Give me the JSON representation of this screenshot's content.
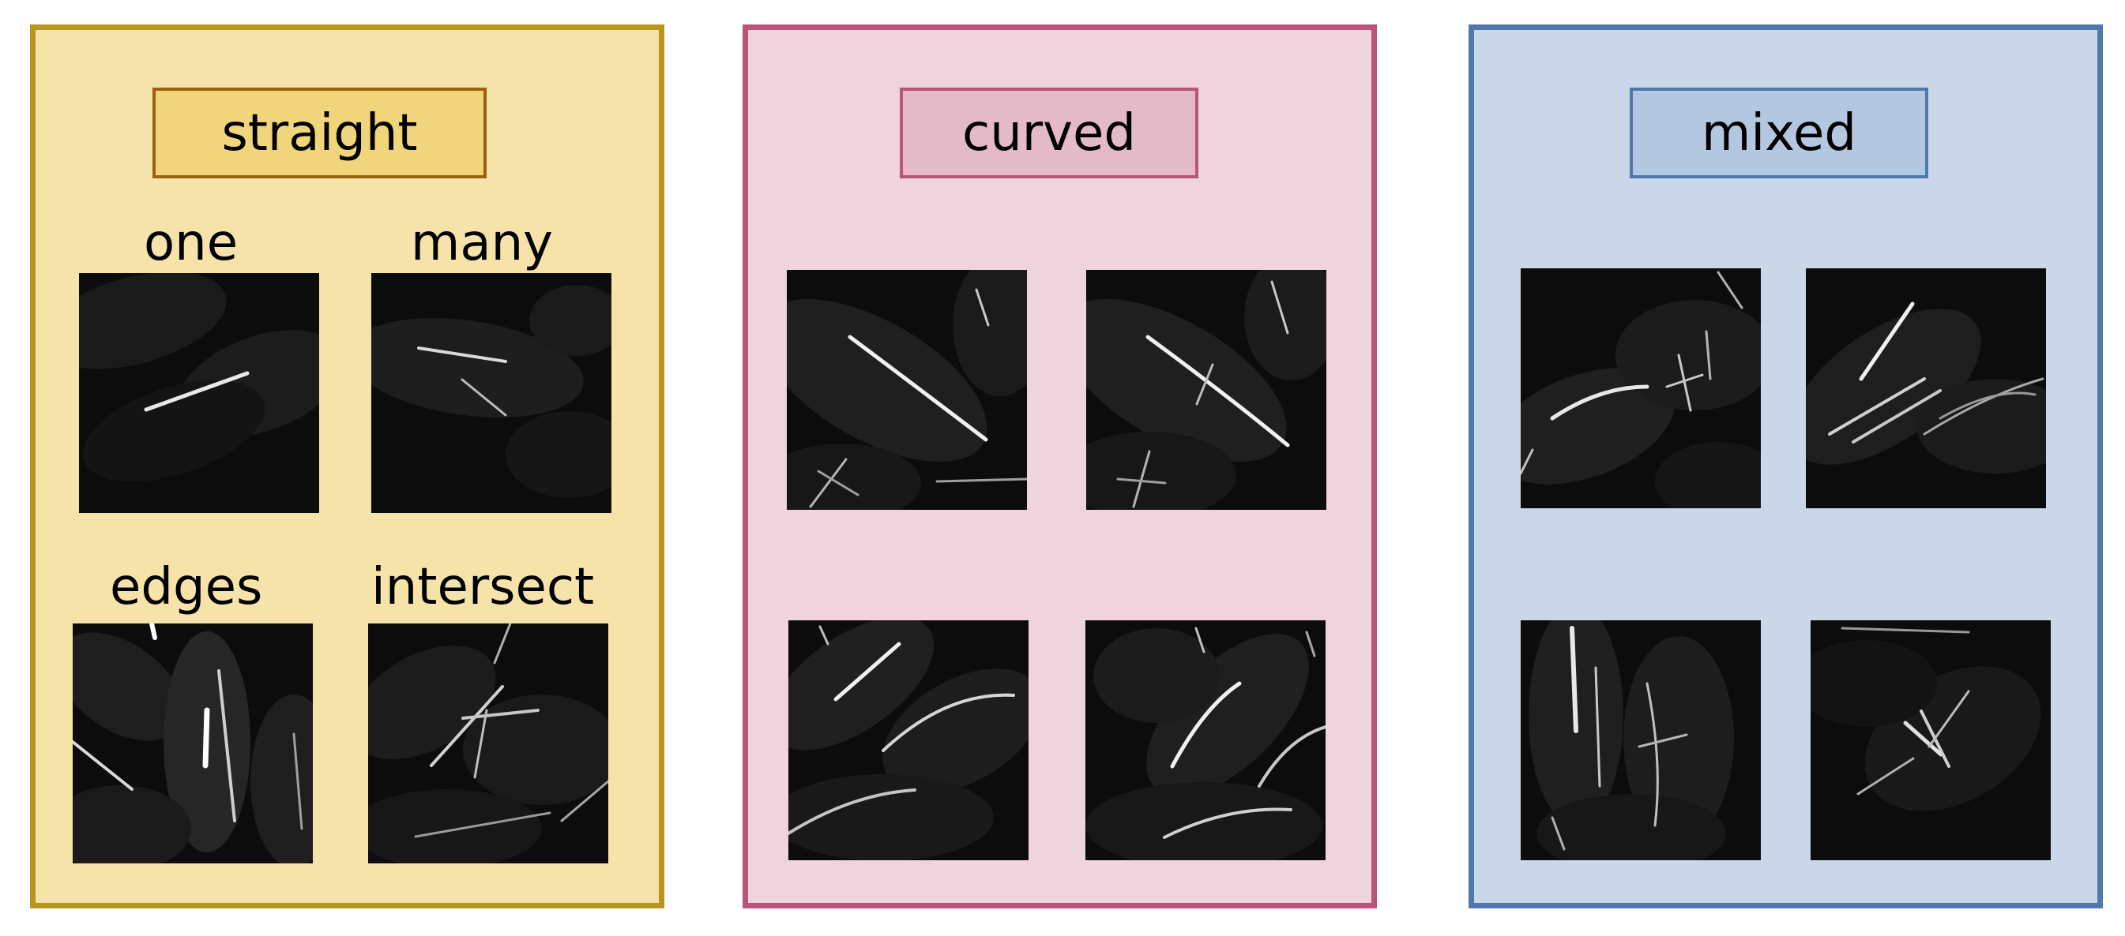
{
  "panels": [
    {
      "title": "straight",
      "border_color": "#b7961f",
      "fill_color": "#f5e3a9",
      "label_fill": "#f1d57c",
      "label_border": "#9c6110",
      "sublabels": [
        "one",
        "many",
        "edges",
        "intersect"
      ]
    },
    {
      "title": "curved",
      "border_color": "#b9557a",
      "fill_color": "#efd3dd",
      "label_fill": "#e4b9c8",
      "label_border": "#b9557a",
      "sublabels": []
    },
    {
      "title": "mixed",
      "border_color": "#4f79aa",
      "fill_color": "#cad7e8",
      "label_fill": "#b3c8e0",
      "label_border": "#4f79aa",
      "sublabels": []
    }
  ]
}
